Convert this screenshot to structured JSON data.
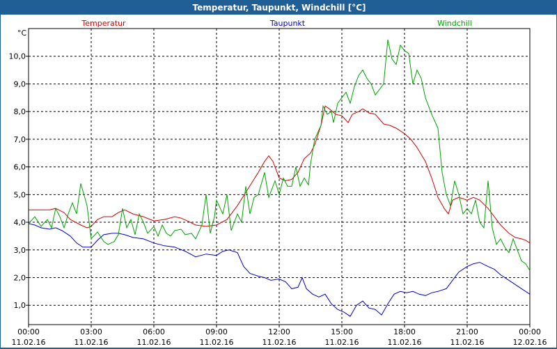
{
  "window": {
    "title": "Temperatur, Taupunkt, Windchill [°C]"
  },
  "chart_data": {
    "type": "line",
    "title": "Temperatur, Taupunkt, Windchill [°C]",
    "y_unit": "°C",
    "ylim": [
      0.3,
      11.0
    ],
    "yticks": [
      "1,0",
      "2,0",
      "3,0",
      "4,0",
      "5,0",
      "6,0",
      "7,0",
      "8,0",
      "9,0",
      "10,0"
    ],
    "ytick_values": [
      1,
      2,
      3,
      4,
      5,
      6,
      7,
      8,
      9,
      10
    ],
    "x_ticks": [
      {
        "time": "00:00",
        "date": "11.02.16",
        "hour": 0
      },
      {
        "time": "03:00",
        "date": "11.02.16",
        "hour": 3
      },
      {
        "time": "06:00",
        "date": "11.02.16",
        "hour": 6
      },
      {
        "time": "09:00",
        "date": "11.02.16",
        "hour": 9
      },
      {
        "time": "12:00",
        "date": "11.02.16",
        "hour": 12
      },
      {
        "time": "15:00",
        "date": "11.02.16",
        "hour": 15
      },
      {
        "time": "18:00",
        "date": "11.02.16",
        "hour": 18
      },
      {
        "time": "21:00",
        "date": "11.02.16",
        "hour": 21
      },
      {
        "time": "00:00",
        "date": "12.02.16",
        "hour": 24
      }
    ],
    "xlim": [
      0,
      24
    ],
    "grid": true,
    "legend": "top",
    "series": [
      {
        "name": "Temperatur",
        "color": "#d00000",
        "points": [
          [
            0,
            4.45
          ],
          [
            0.5,
            4.45
          ],
          [
            1,
            4.45
          ],
          [
            1.3,
            4.5
          ],
          [
            1.7,
            4.35
          ],
          [
            2,
            4.1
          ],
          [
            2.5,
            3.9
          ],
          [
            2.8,
            3.8
          ],
          [
            3,
            3.85
          ],
          [
            3.3,
            4.1
          ],
          [
            3.6,
            4.2
          ],
          [
            4,
            4.2
          ],
          [
            4.3,
            4.35
          ],
          [
            4.6,
            4.45
          ],
          [
            5,
            4.3
          ],
          [
            5.5,
            4.2
          ],
          [
            6,
            4.05
          ],
          [
            6.5,
            4.1
          ],
          [
            7,
            4.2
          ],
          [
            7.3,
            4.15
          ],
          [
            7.6,
            4.05
          ],
          [
            8,
            3.9
          ],
          [
            8.5,
            3.85
          ],
          [
            9,
            3.9
          ],
          [
            9.5,
            4.1
          ],
          [
            10,
            4.6
          ],
          [
            10.5,
            5.2
          ],
          [
            11,
            5.8
          ],
          [
            11.3,
            6.2
          ],
          [
            11.5,
            6.4
          ],
          [
            11.7,
            6.2
          ],
          [
            12,
            5.6
          ],
          [
            12.3,
            5.5
          ],
          [
            12.6,
            5.55
          ],
          [
            12.9,
            5.8
          ],
          [
            13.2,
            6.3
          ],
          [
            13.5,
            6.5
          ],
          [
            13.7,
            6.8
          ],
          [
            14,
            7.5
          ],
          [
            14.2,
            8.2
          ],
          [
            14.4,
            8.1
          ],
          [
            14.7,
            7.9
          ],
          [
            15,
            7.85
          ],
          [
            15.3,
            7.6
          ],
          [
            15.5,
            7.9
          ],
          [
            15.8,
            8.0
          ],
          [
            16,
            8.1
          ],
          [
            16.3,
            7.95
          ],
          [
            16.6,
            7.9
          ],
          [
            17,
            7.55
          ],
          [
            17.3,
            7.5
          ],
          [
            17.6,
            7.4
          ],
          [
            18,
            7.2
          ],
          [
            18.3,
            7.0
          ],
          [
            18.6,
            6.7
          ],
          [
            19,
            6.2
          ],
          [
            19.3,
            5.6
          ],
          [
            19.6,
            4.9
          ],
          [
            19.9,
            4.5
          ],
          [
            20.1,
            4.3
          ],
          [
            20.3,
            4.8
          ],
          [
            20.6,
            4.9
          ],
          [
            21,
            4.8
          ],
          [
            21.3,
            4.9
          ],
          [
            21.6,
            4.8
          ],
          [
            22,
            4.5
          ],
          [
            22.3,
            4.2
          ],
          [
            22.6,
            3.9
          ],
          [
            23,
            3.6
          ],
          [
            23.3,
            3.45
          ],
          [
            23.6,
            3.4
          ],
          [
            23.8,
            3.35
          ],
          [
            24,
            3.25
          ]
        ]
      },
      {
        "name": "Taupunkt",
        "color": "#0000c8",
        "points": [
          [
            0,
            3.95
          ],
          [
            0.3,
            3.9
          ],
          [
            0.6,
            3.8
          ],
          [
            1,
            3.75
          ],
          [
            1.3,
            3.8
          ],
          [
            1.6,
            3.7
          ],
          [
            2,
            3.5
          ],
          [
            2.3,
            3.25
          ],
          [
            2.6,
            3.1
          ],
          [
            3,
            3.1
          ],
          [
            3.3,
            3.35
          ],
          [
            3.6,
            3.55
          ],
          [
            4,
            3.6
          ],
          [
            4.3,
            3.6
          ],
          [
            4.6,
            3.55
          ],
          [
            5,
            3.45
          ],
          [
            5.5,
            3.4
          ],
          [
            6,
            3.25
          ],
          [
            6.5,
            3.15
          ],
          [
            7,
            3.1
          ],
          [
            7.5,
            2.95
          ],
          [
            8,
            2.75
          ],
          [
            8.5,
            2.85
          ],
          [
            9,
            2.8
          ],
          [
            9.3,
            2.95
          ],
          [
            9.6,
            3.0
          ],
          [
            10,
            2.9
          ],
          [
            10.3,
            2.4
          ],
          [
            10.6,
            2.15
          ],
          [
            11,
            2.05
          ],
          [
            11.3,
            2.0
          ],
          [
            11.6,
            1.9
          ],
          [
            12,
            1.95
          ],
          [
            12.3,
            1.85
          ],
          [
            12.6,
            1.6
          ],
          [
            12.9,
            1.65
          ],
          [
            13.1,
            2.0
          ],
          [
            13.3,
            1.6
          ],
          [
            13.6,
            1.4
          ],
          [
            13.9,
            1.3
          ],
          [
            14.2,
            1.4
          ],
          [
            14.5,
            1.05
          ],
          [
            14.8,
            0.85
          ],
          [
            15.1,
            0.75
          ],
          [
            15.4,
            0.6
          ],
          [
            15.7,
            1.0
          ],
          [
            16,
            1.15
          ],
          [
            16.3,
            0.9
          ],
          [
            16.6,
            0.85
          ],
          [
            16.9,
            0.65
          ],
          [
            17.2,
            1.05
          ],
          [
            17.5,
            1.4
          ],
          [
            17.8,
            1.5
          ],
          [
            18.1,
            1.45
          ],
          [
            18.4,
            1.5
          ],
          [
            18.7,
            1.4
          ],
          [
            19,
            1.35
          ],
          [
            19.3,
            1.45
          ],
          [
            19.6,
            1.5
          ],
          [
            20,
            1.6
          ],
          [
            20.3,
            1.9
          ],
          [
            20.6,
            2.2
          ],
          [
            21,
            2.4
          ],
          [
            21.3,
            2.5
          ],
          [
            21.6,
            2.55
          ],
          [
            22,
            2.4
          ],
          [
            22.3,
            2.3
          ],
          [
            22.6,
            2.1
          ],
          [
            23,
            1.9
          ],
          [
            23.3,
            1.75
          ],
          [
            23.6,
            1.6
          ],
          [
            24,
            1.4
          ]
        ]
      },
      {
        "name": "Windchill",
        "color": "#00a000",
        "points": [
          [
            0,
            3.95
          ],
          [
            0.3,
            4.2
          ],
          [
            0.6,
            3.85
          ],
          [
            0.9,
            4.1
          ],
          [
            1.1,
            3.8
          ],
          [
            1.3,
            4.5
          ],
          [
            1.5,
            4.2
          ],
          [
            1.7,
            3.8
          ],
          [
            1.9,
            4.3
          ],
          [
            2.1,
            4.7
          ],
          [
            2.3,
            4.3
          ],
          [
            2.5,
            5.4
          ],
          [
            2.8,
            4.6
          ],
          [
            3,
            3.4
          ],
          [
            3.3,
            3.65
          ],
          [
            3.6,
            3.3
          ],
          [
            3.8,
            3.2
          ],
          [
            4.1,
            3.3
          ],
          [
            4.3,
            3.55
          ],
          [
            4.5,
            4.5
          ],
          [
            4.7,
            3.8
          ],
          [
            4.9,
            4.1
          ],
          [
            5.1,
            3.55
          ],
          [
            5.3,
            4.3
          ],
          [
            5.5,
            4.0
          ],
          [
            5.7,
            3.6
          ],
          [
            6,
            3.85
          ],
          [
            6.2,
            3.5
          ],
          [
            6.4,
            3.9
          ],
          [
            6.6,
            3.6
          ],
          [
            6.8,
            3.5
          ],
          [
            7,
            3.7
          ],
          [
            7.3,
            3.75
          ],
          [
            7.5,
            3.55
          ],
          [
            7.8,
            3.6
          ],
          [
            8,
            3.4
          ],
          [
            8.3,
            3.9
          ],
          [
            8.5,
            5.0
          ],
          [
            8.7,
            3.6
          ],
          [
            8.9,
            4.2
          ],
          [
            9,
            4.8
          ],
          [
            9.3,
            4.3
          ],
          [
            9.5,
            5.0
          ],
          [
            9.7,
            3.7
          ],
          [
            10,
            4.3
          ],
          [
            10.2,
            4.0
          ],
          [
            10.4,
            5.3
          ],
          [
            10.6,
            4.3
          ],
          [
            10.8,
            4.9
          ],
          [
            11,
            5.0
          ],
          [
            11.3,
            5.8
          ],
          [
            11.5,
            4.9
          ],
          [
            11.8,
            5.5
          ],
          [
            12,
            5.0
          ],
          [
            12.2,
            5.6
          ],
          [
            12.4,
            5.3
          ],
          [
            12.6,
            5.3
          ],
          [
            12.8,
            6.0
          ],
          [
            13,
            5.3
          ],
          [
            13.2,
            5.6
          ],
          [
            13.4,
            5.35
          ],
          [
            13.5,
            6.1
          ],
          [
            13.7,
            7.0
          ],
          [
            14,
            7.5
          ],
          [
            14.1,
            8.2
          ],
          [
            14.3,
            7.9
          ],
          [
            14.5,
            8.0
          ],
          [
            14.6,
            7.6
          ],
          [
            14.8,
            8.3
          ],
          [
            15,
            8.5
          ],
          [
            15.2,
            8.7
          ],
          [
            15.4,
            8.3
          ],
          [
            15.6,
            8.9
          ],
          [
            15.8,
            9.3
          ],
          [
            16,
            9.5
          ],
          [
            16.2,
            9.2
          ],
          [
            16.4,
            9.0
          ],
          [
            16.6,
            8.6
          ],
          [
            16.8,
            8.8
          ],
          [
            17,
            9.0
          ],
          [
            17.2,
            10.6
          ],
          [
            17.4,
            9.9
          ],
          [
            17.6,
            9.7
          ],
          [
            17.8,
            10.4
          ],
          [
            18,
            10.2
          ],
          [
            18.2,
            10.1
          ],
          [
            18.4,
            9.0
          ],
          [
            18.6,
            9.5
          ],
          [
            18.8,
            9.2
          ],
          [
            19,
            8.5
          ],
          [
            19.3,
            7.9
          ],
          [
            19.6,
            7.4
          ],
          [
            19.8,
            5.8
          ],
          [
            20,
            5.0
          ],
          [
            20.2,
            4.6
          ],
          [
            20.4,
            5.5
          ],
          [
            20.6,
            5.0
          ],
          [
            20.8,
            4.3
          ],
          [
            21,
            4.5
          ],
          [
            21.2,
            4.3
          ],
          [
            21.4,
            4.8
          ],
          [
            21.6,
            4.0
          ],
          [
            21.8,
            3.8
          ],
          [
            22,
            5.5
          ],
          [
            22.2,
            3.8
          ],
          [
            22.4,
            3.2
          ],
          [
            22.6,
            3.4
          ],
          [
            22.8,
            3.1
          ],
          [
            23,
            2.9
          ],
          [
            23.2,
            3.4
          ],
          [
            23.4,
            3.0
          ],
          [
            23.6,
            2.6
          ],
          [
            23.8,
            2.5
          ],
          [
            24,
            2.25
          ]
        ]
      }
    ]
  }
}
